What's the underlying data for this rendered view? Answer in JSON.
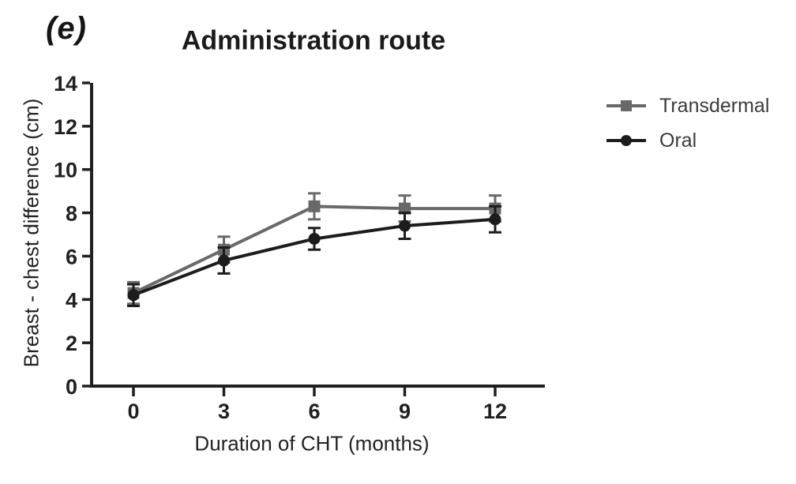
{
  "panel_label": "(e)",
  "chart_data": {
    "type": "line",
    "title": "Administration route",
    "xlabel": "Duration of CHT (months)",
    "ylabel": "Breast - chest difference (cm)",
    "x": [
      0,
      3,
      6,
      9,
      12
    ],
    "xtick_labels": [
      "0",
      "3",
      "6",
      "9",
      "12"
    ],
    "ytick_labels": [
      "0",
      "2",
      "4",
      "6",
      "8",
      "10",
      "12",
      "14"
    ],
    "xlim": [
      0,
      12
    ],
    "ylim": [
      0,
      14
    ],
    "grid": false,
    "legend_position": "right",
    "axis_color": "#231f20",
    "error_bars": "plus-minus, capped",
    "series": [
      {
        "name": "Transdermal",
        "marker": "square",
        "color": "#696969",
        "values": [
          4.3,
          6.3,
          8.3,
          8.2,
          8.2
        ],
        "errors": [
          0.5,
          0.6,
          0.6,
          0.6,
          0.6
        ]
      },
      {
        "name": "Oral",
        "marker": "circle",
        "color": "#1c1c1c",
        "values": [
          4.2,
          5.8,
          6.8,
          7.4,
          7.7
        ],
        "errors": [
          0.5,
          0.6,
          0.5,
          0.6,
          0.6
        ]
      }
    ]
  }
}
